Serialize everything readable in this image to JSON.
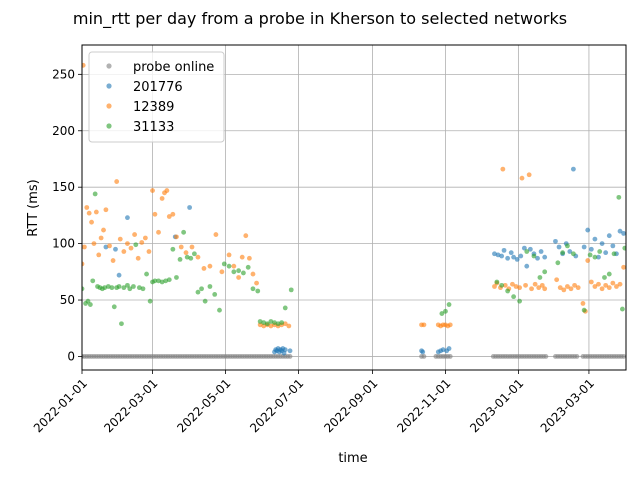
{
  "chart_data": {
    "type": "scatter",
    "title": "min_rtt per day from a probe in Kherson to selected networks",
    "xlabel": "time",
    "ylabel": "RTT (ms)",
    "xlim": [
      "2022-01-01",
      "2023-04-01"
    ],
    "ylim": [
      -12,
      276
    ],
    "x_ticks": [
      "2022-01-01",
      "2022-03-01",
      "2022-05-01",
      "2022-07-01",
      "2022-09-01",
      "2022-11-01",
      "2023-01-01",
      "2023-03-01"
    ],
    "y_ticks": [
      0,
      50,
      100,
      150,
      200,
      250
    ],
    "grid": true,
    "legend_position": "top-left",
    "colors": {
      "probe online": "#7f7f7f",
      "201776": "#1f77b4",
      "12389": "#ff7f0e",
      "31133": "#2ca02c"
    },
    "series": [
      {
        "name": "probe online",
        "color": "#7f7f7f",
        "segments": [
          {
            "start": "2022-01-01",
            "end": "2022-05-02",
            "value": 0
          },
          {
            "start": "2022-05-03",
            "end": "2022-06-25",
            "value": 0
          },
          {
            "start": "2022-10-12",
            "end": "2022-10-14",
            "value": 0
          },
          {
            "start": "2022-10-24",
            "end": "2022-11-05",
            "value": 0
          },
          {
            "start": "2022-12-11",
            "end": "2023-01-24",
            "value": 0
          },
          {
            "start": "2023-02-01",
            "end": "2023-02-20",
            "value": 0
          },
          {
            "start": "2023-02-24",
            "end": "2023-03-31",
            "value": 0
          }
        ]
      },
      {
        "name": "201776",
        "color": "#1f77b4",
        "points": [
          [
            "2022-01-21",
            97
          ],
          [
            "2022-01-29",
            95
          ],
          [
            "2022-02-08",
            123
          ],
          [
            "2022-02-01",
            72
          ],
          [
            "2022-04-01",
            132
          ],
          [
            "2022-03-20",
            106
          ],
          [
            "2022-06-11",
            4
          ],
          [
            "2022-06-12",
            6
          ],
          [
            "2022-06-13",
            5
          ],
          [
            "2022-06-14",
            7
          ],
          [
            "2022-06-15",
            4
          ],
          [
            "2022-06-16",
            6
          ],
          [
            "2022-06-17",
            5
          ],
          [
            "2022-06-18",
            7
          ],
          [
            "2022-06-19",
            3
          ],
          [
            "2022-06-20",
            6
          ],
          [
            "2022-06-24",
            5
          ],
          [
            "2022-10-12",
            5
          ],
          [
            "2022-10-13",
            4
          ],
          [
            "2022-10-26",
            4
          ],
          [
            "2022-10-28",
            5
          ],
          [
            "2022-10-30",
            6
          ],
          [
            "2022-11-02",
            5
          ],
          [
            "2022-11-04",
            7
          ],
          [
            "2022-12-12",
            91
          ],
          [
            "2022-12-15",
            90
          ],
          [
            "2022-12-18",
            89
          ],
          [
            "2022-12-20",
            94
          ],
          [
            "2022-12-23",
            87
          ],
          [
            "2022-12-26",
            92
          ],
          [
            "2022-12-28",
            88
          ],
          [
            "2022-12-31",
            86
          ],
          [
            "2023-01-03",
            89
          ],
          [
            "2023-01-06",
            96
          ],
          [
            "2023-01-08",
            80
          ],
          [
            "2023-01-11",
            95
          ],
          [
            "2023-01-14",
            91
          ],
          [
            "2023-01-17",
            87
          ],
          [
            "2023-01-20",
            93
          ],
          [
            "2023-01-23",
            88
          ],
          [
            "2023-02-01",
            102
          ],
          [
            "2023-02-04",
            97
          ],
          [
            "2023-02-07",
            91
          ],
          [
            "2023-02-10",
            100
          ],
          [
            "2023-02-13",
            93
          ],
          [
            "2023-02-16",
            166
          ],
          [
            "2023-02-18",
            89
          ],
          [
            "2023-02-25",
            97
          ],
          [
            "2023-02-28",
            112
          ],
          [
            "2023-03-03",
            95
          ],
          [
            "2023-03-06",
            104
          ],
          [
            "2023-03-09",
            88
          ],
          [
            "2023-03-12",
            100
          ],
          [
            "2023-03-15",
            92
          ],
          [
            "2023-03-18",
            107
          ],
          [
            "2023-03-21",
            98
          ],
          [
            "2023-03-24",
            91
          ],
          [
            "2023-03-27",
            111
          ],
          [
            "2023-03-30",
            109
          ]
        ]
      },
      {
        "name": "12389",
        "color": "#ff7f0e",
        "points": [
          [
            "2022-01-02",
            258
          ],
          [
            "2022-01-01",
            82
          ],
          [
            "2022-01-03",
            97
          ],
          [
            "2022-01-05",
            132
          ],
          [
            "2022-01-07",
            127
          ],
          [
            "2022-01-09",
            119
          ],
          [
            "2022-01-11",
            100
          ],
          [
            "2022-01-13",
            128
          ],
          [
            "2022-01-15",
            90
          ],
          [
            "2022-01-17",
            105
          ],
          [
            "2022-01-19",
            112
          ],
          [
            "2022-01-21",
            130
          ],
          [
            "2022-01-24",
            98
          ],
          [
            "2022-01-27",
            85
          ],
          [
            "2022-01-30",
            155
          ],
          [
            "2022-02-02",
            104
          ],
          [
            "2022-02-05",
            93
          ],
          [
            "2022-02-08",
            100
          ],
          [
            "2022-02-11",
            96
          ],
          [
            "2022-02-14",
            108
          ],
          [
            "2022-02-17",
            87
          ],
          [
            "2022-02-20",
            101
          ],
          [
            "2022-02-23",
            105
          ],
          [
            "2022-02-26",
            93
          ],
          [
            "2022-03-01",
            147
          ],
          [
            "2022-03-03",
            126
          ],
          [
            "2022-03-06",
            110
          ],
          [
            "2022-03-09",
            140
          ],
          [
            "2022-03-11",
            145
          ],
          [
            "2022-03-13",
            147
          ],
          [
            "2022-03-15",
            124
          ],
          [
            "2022-03-18",
            126
          ],
          [
            "2022-03-21",
            106
          ],
          [
            "2022-03-25",
            97
          ],
          [
            "2022-03-29",
            92
          ],
          [
            "2022-04-03",
            97
          ],
          [
            "2022-04-08",
            88
          ],
          [
            "2022-04-13",
            78
          ],
          [
            "2022-04-18",
            80
          ],
          [
            "2022-04-23",
            108
          ],
          [
            "2022-04-28",
            75
          ],
          [
            "2022-05-04",
            90
          ],
          [
            "2022-05-08",
            80
          ],
          [
            "2022-05-12",
            70
          ],
          [
            "2022-05-15",
            88
          ],
          [
            "2022-05-18",
            107
          ],
          [
            "2022-05-21",
            87
          ],
          [
            "2022-05-24",
            73
          ],
          [
            "2022-05-27",
            65
          ],
          [
            "2022-05-30",
            28
          ],
          [
            "2022-06-02",
            27
          ],
          [
            "2022-06-05",
            28
          ],
          [
            "2022-06-08",
            27
          ],
          [
            "2022-06-11",
            28
          ],
          [
            "2022-06-14",
            27
          ],
          [
            "2022-06-17",
            28
          ],
          [
            "2022-06-20",
            29
          ],
          [
            "2022-06-23",
            27
          ],
          [
            "2022-10-12",
            28
          ],
          [
            "2022-10-14",
            28
          ],
          [
            "2022-10-26",
            28
          ],
          [
            "2022-10-28",
            27
          ],
          [
            "2022-10-30",
            28
          ],
          [
            "2022-11-01",
            28
          ],
          [
            "2022-11-03",
            27
          ],
          [
            "2022-11-05",
            28
          ],
          [
            "2022-12-12",
            62
          ],
          [
            "2022-12-14",
            65
          ],
          [
            "2022-12-17",
            61
          ],
          [
            "2022-12-19",
            166
          ],
          [
            "2022-12-21",
            63
          ],
          [
            "2022-12-24",
            60
          ],
          [
            "2022-12-27",
            64
          ],
          [
            "2022-12-30",
            62
          ],
          [
            "2023-01-02",
            61
          ],
          [
            "2023-01-04",
            158
          ],
          [
            "2023-01-07",
            63
          ],
          [
            "2023-01-10",
            161
          ],
          [
            "2023-01-12",
            60
          ],
          [
            "2023-01-15",
            64
          ],
          [
            "2023-01-18",
            61
          ],
          [
            "2023-01-21",
            63
          ],
          [
            "2023-01-23",
            60
          ],
          [
            "2023-02-02",
            68
          ],
          [
            "2023-02-05",
            61
          ],
          [
            "2023-02-08",
            59
          ],
          [
            "2023-02-11",
            62
          ],
          [
            "2023-02-14",
            60
          ],
          [
            "2023-02-17",
            63
          ],
          [
            "2023-02-20",
            61
          ],
          [
            "2023-02-24",
            47
          ],
          [
            "2023-02-26",
            40
          ],
          [
            "2023-02-28",
            85
          ],
          [
            "2023-03-03",
            66
          ],
          [
            "2023-03-06",
            62
          ],
          [
            "2023-03-09",
            64
          ],
          [
            "2023-03-12",
            60
          ],
          [
            "2023-03-15",
            63
          ],
          [
            "2023-03-18",
            61
          ],
          [
            "2023-03-21",
            65
          ],
          [
            "2023-03-24",
            62
          ],
          [
            "2023-03-27",
            64
          ],
          [
            "2023-03-30",
            79
          ]
        ]
      },
      {
        "name": "31133",
        "color": "#2ca02c",
        "points": [
          [
            "2022-01-01",
            60
          ],
          [
            "2022-01-04",
            47
          ],
          [
            "2022-01-06",
            49
          ],
          [
            "2022-01-08",
            46
          ],
          [
            "2022-01-10",
            67
          ],
          [
            "2022-01-12",
            144
          ],
          [
            "2022-01-14",
            62
          ],
          [
            "2022-01-16",
            61
          ],
          [
            "2022-01-18",
            60
          ],
          [
            "2022-01-20",
            61
          ],
          [
            "2022-01-23",
            62
          ],
          [
            "2022-01-26",
            61
          ],
          [
            "2022-01-28",
            44
          ],
          [
            "2022-01-30",
            61
          ],
          [
            "2022-02-01",
            62
          ],
          [
            "2022-02-03",
            29
          ],
          [
            "2022-02-05",
            61
          ],
          [
            "2022-02-08",
            63
          ],
          [
            "2022-02-10",
            60
          ],
          [
            "2022-02-13",
            62
          ],
          [
            "2022-02-15",
            99
          ],
          [
            "2022-02-18",
            61
          ],
          [
            "2022-02-21",
            60
          ],
          [
            "2022-02-24",
            73
          ],
          [
            "2022-02-27",
            49
          ],
          [
            "2022-03-01",
            66
          ],
          [
            "2022-03-03",
            67
          ],
          [
            "2022-03-06",
            67
          ],
          [
            "2022-03-09",
            66
          ],
          [
            "2022-03-12",
            67
          ],
          [
            "2022-03-15",
            68
          ],
          [
            "2022-03-18",
            95
          ],
          [
            "2022-03-21",
            70
          ],
          [
            "2022-03-24",
            86
          ],
          [
            "2022-03-27",
            110
          ],
          [
            "2022-03-30",
            88
          ],
          [
            "2022-04-02",
            87
          ],
          [
            "2022-04-05",
            91
          ],
          [
            "2022-04-08",
            57
          ],
          [
            "2022-04-11",
            60
          ],
          [
            "2022-04-14",
            49
          ],
          [
            "2022-04-18",
            62
          ],
          [
            "2022-04-22",
            55
          ],
          [
            "2022-04-26",
            41
          ],
          [
            "2022-04-30",
            82
          ],
          [
            "2022-05-04",
            80
          ],
          [
            "2022-05-08",
            75
          ],
          [
            "2022-05-12",
            76
          ],
          [
            "2022-05-16",
            74
          ],
          [
            "2022-05-20",
            79
          ],
          [
            "2022-05-24",
            60
          ],
          [
            "2022-05-28",
            58
          ],
          [
            "2022-05-30",
            31
          ],
          [
            "2022-06-02",
            30
          ],
          [
            "2022-06-05",
            29
          ],
          [
            "2022-06-08",
            31
          ],
          [
            "2022-06-11",
            30
          ],
          [
            "2022-06-14",
            29
          ],
          [
            "2022-06-17",
            30
          ],
          [
            "2022-06-20",
            43
          ],
          [
            "2022-06-25",
            59
          ],
          [
            "2022-10-29",
            38
          ],
          [
            "2022-11-01",
            40
          ],
          [
            "2022-11-04",
            46
          ],
          [
            "2022-12-14",
            66
          ],
          [
            "2022-12-18",
            63
          ],
          [
            "2022-12-23",
            58
          ],
          [
            "2022-12-28",
            53
          ],
          [
            "2023-01-02",
            49
          ],
          [
            "2023-01-08",
            93
          ],
          [
            "2023-01-14",
            89
          ],
          [
            "2023-01-19",
            70
          ],
          [
            "2023-01-23",
            75
          ],
          [
            "2023-02-03",
            83
          ],
          [
            "2023-02-07",
            92
          ],
          [
            "2023-02-11",
            98
          ],
          [
            "2023-02-16",
            91
          ],
          [
            "2023-02-25",
            41
          ],
          [
            "2023-03-02",
            90
          ],
          [
            "2023-03-06",
            88
          ],
          [
            "2023-03-10",
            93
          ],
          [
            "2023-03-14",
            70
          ],
          [
            "2023-03-18",
            73
          ],
          [
            "2023-03-22",
            91
          ],
          [
            "2023-03-26",
            141
          ],
          [
            "2023-03-29",
            42
          ],
          [
            "2023-03-31",
            96
          ]
        ]
      }
    ]
  }
}
